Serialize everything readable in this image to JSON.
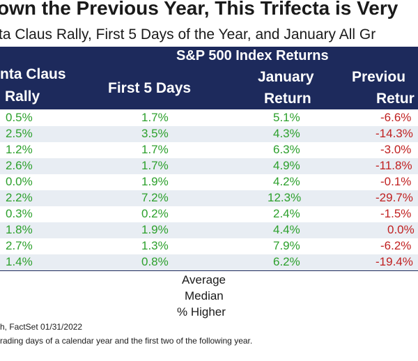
{
  "title": "own the Previous Year, This Trifecta is Very",
  "subtitle": "ta Claus Rally, First 5 Days of the Year, and January All Gr",
  "table": {
    "group_header": "S&P 500 Index Returns",
    "columns": {
      "santa_line1": "nta Claus",
      "santa_line2": "Rally",
      "first5": "First 5 Days",
      "jan_line1": "January",
      "jan_line2": "Return",
      "prev_line1": "Previou",
      "prev_line2": "Retur"
    },
    "rows": [
      {
        "santa": "0.5%",
        "first5": "1.7%",
        "january": "5.1%",
        "previous": "-6.6%"
      },
      {
        "santa": "2.5%",
        "first5": "3.5%",
        "january": "4.3%",
        "previous": "-14.3%"
      },
      {
        "santa": "1.2%",
        "first5": "1.7%",
        "january": "6.3%",
        "previous": "-3.0%"
      },
      {
        "santa": "2.6%",
        "first5": "1.7%",
        "january": "4.9%",
        "previous": "-11.8%"
      },
      {
        "santa": "0.0%",
        "first5": "1.9%",
        "january": "4.2%",
        "previous": "-0.1%"
      },
      {
        "santa": "2.2%",
        "first5": "7.2%",
        "january": "12.3%",
        "previous": "-29.7%"
      },
      {
        "santa": "0.3%",
        "first5": "0.2%",
        "january": "2.4%",
        "previous": "-1.5%"
      },
      {
        "santa": "1.8%",
        "first5": "1.9%",
        "january": "4.4%",
        "previous": "0.0%"
      },
      {
        "santa": "2.7%",
        "first5": "1.3%",
        "january": "7.9%",
        "previous": "-6.2%"
      },
      {
        "santa": "1.4%",
        "first5": "0.8%",
        "january": "6.2%",
        "previous": "-19.4%"
      }
    ],
    "summary": {
      "average": "Average",
      "median": "Median",
      "pct_higher": "% Higher"
    }
  },
  "footnotes": {
    "source": "h, FactSet 01/31/2022",
    "note": "rading days of a calendar year and the first two of the following year."
  },
  "colors": {
    "header_bg": "#1d2a5c",
    "positive": "#2ca02c",
    "negative": "#c02020",
    "alt_row": "#e8edf3"
  }
}
